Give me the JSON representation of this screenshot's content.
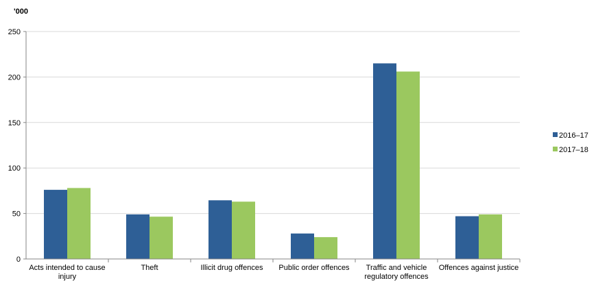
{
  "chart_data": {
    "type": "bar",
    "title": "",
    "ylabel": "'000",
    "xlabel": "",
    "ylim": [
      0,
      250
    ],
    "yticks": [
      0,
      50,
      100,
      150,
      200,
      250
    ],
    "grid": true,
    "legend_position": "right",
    "categories": [
      [
        "Acts intended to cause",
        "injury"
      ],
      [
        "Theft"
      ],
      [
        "Illicit drug offences"
      ],
      [
        "Public order offences"
      ],
      [
        "Traffic and vehicle",
        "regulatory offences"
      ],
      [
        "Offences against justice"
      ]
    ],
    "series": [
      {
        "name": "2016–17",
        "color": "#2E5F96",
        "values": [
          76,
          49,
          64.5,
          28,
          215,
          47
        ]
      },
      {
        "name": "2017–18",
        "color": "#9BC85F",
        "values": [
          78,
          46.5,
          63,
          24,
          206,
          49
        ]
      }
    ]
  }
}
